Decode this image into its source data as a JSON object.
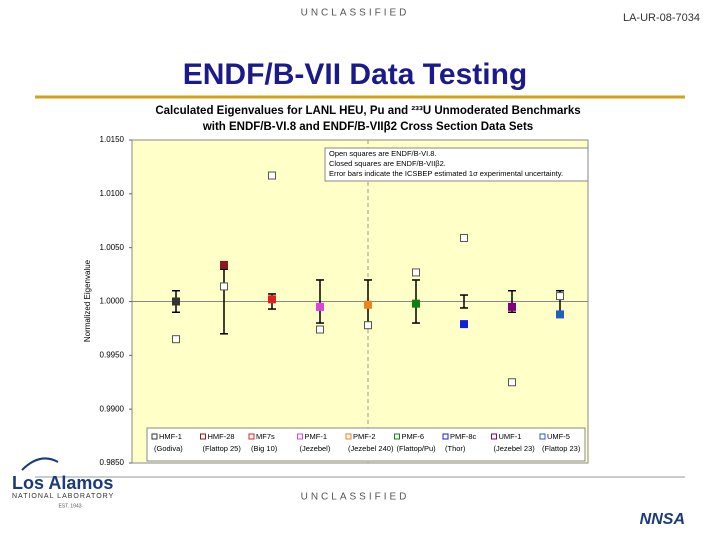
{
  "header": {
    "classification": "UNCLASSIFIED",
    "report_number": "LA-UR-08-7034",
    "title": "ENDF/B-VII Data Testing"
  },
  "footer": {
    "classification": "UNCLASSIFIED",
    "lab_name": "Los Alamos",
    "lab_subtitle": "NATIONAL LABORATORY",
    "established": "EST. 1943",
    "agency": "NNSA"
  },
  "chart_data": {
    "type": "scatter",
    "title": "Calculated Eigenvalues for LANL HEU, Pu and ²³³U Unmoderated Benchmarks",
    "subtitle": "with ENDF/B-VI.8 and ENDF/B-VIIβ2 Cross Section Data Sets",
    "y_label": "Normalized Eigenvalue",
    "annotations": [
      "Open squares are ENDF/B-VI.8.",
      "Closed squares are ENDF/B-VIIβ2.",
      "Error bars indicate the ICSBEP estimated 1σ experimental uncertainty."
    ],
    "categories": [
      "HMF-1",
      "HMF-28",
      "MF7s",
      "PMF-1",
      "PMF-2",
      "PMF-6",
      "PMF-8c",
      "UMF-1",
      "UMF-5"
    ],
    "category_notes": [
      "(Godiva)",
      "(Flattop 25)",
      "(Big 10)",
      "(Jezebel)",
      "(Jezebel 240)",
      "(Flattop/Pu)",
      "(Thor)",
      "(Jezebel 23)",
      "(Flattop 23)"
    ],
    "colors": [
      "#333333",
      "#8b1a1a",
      "#e02020",
      "#e040e0",
      "#f08020",
      "#108010",
      "#1020e0",
      "#800080",
      "#2060c0"
    ],
    "series": [
      {
        "style": "open",
        "values": [
          0.9965,
          1.0014,
          1.0117,
          0.9974,
          0.9978,
          1.0027,
          1.0059,
          0.9925,
          1.0005
        ]
      },
      {
        "style": "closed",
        "values": [
          1.0,
          1.0034,
          1.0002,
          0.9995,
          0.9997,
          0.9998,
          0.9979,
          0.9995,
          0.9988
        ]
      }
    ],
    "reference": 1.0,
    "errors": [
      0.001,
      0.003,
      0.0007,
      0.002,
      0.002,
      0.002,
      0.0006,
      0.001,
      0.001
    ],
    "ylim": [
      0.985,
      1.015
    ],
    "yticks": [
      {
        "value": 0.985,
        "label": "0.9850"
      },
      {
        "value": 0.99,
        "label": "0.9900"
      },
      {
        "value": 0.995,
        "label": "0.9950"
      },
      {
        "value": 1.0,
        "label": "1.0000"
      },
      {
        "value": 1.005,
        "label": "1.0050"
      },
      {
        "value": 1.01,
        "label": "1.0100"
      },
      {
        "value": 1.015,
        "label": "1.0150"
      }
    ],
    "grid": false
  }
}
